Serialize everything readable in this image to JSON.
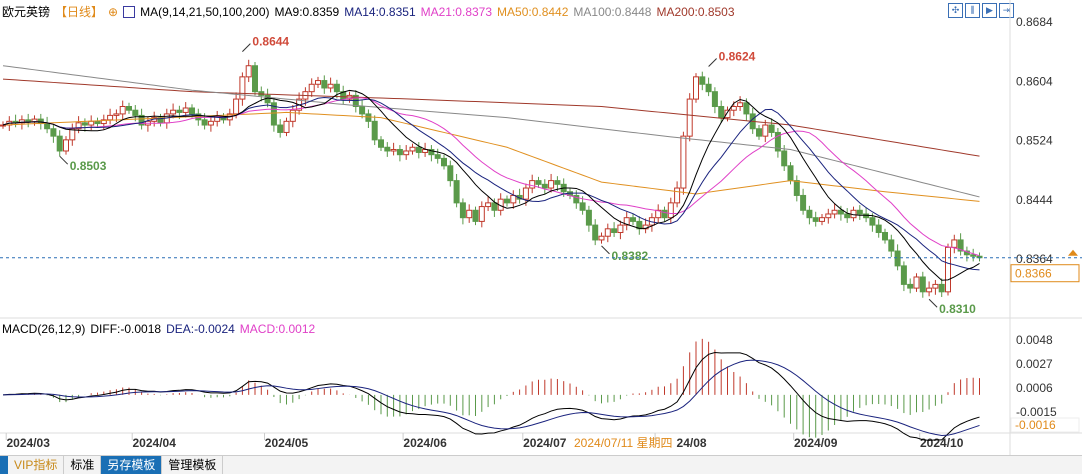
{
  "header": {
    "symbol": "欧元英镑",
    "period": "【日线】",
    "add_icon": "plus-circle-icon",
    "ma_label": "MA(9,14,21,50,100,200)",
    "ma9": "MA9:0.8359",
    "ma14": "MA14:0.8351",
    "ma21": "MA21:0.8373",
    "ma50": "MA50:0.8442",
    "ma100": "MA100:0.8448",
    "ma200": "MA200:0.8503"
  },
  "macd_header": {
    "label": "MACD(26,12,9)",
    "diff": "DIFF:-0.0018",
    "dea": "DEA:-0.0024",
    "macd": "MACD:0.0012"
  },
  "toolbar_icons": [
    "move-icon",
    "zoom-range-icon",
    "play-icon",
    "exit-icon"
  ],
  "colors": {
    "up": "#c0392b",
    "down": "#5a9a4a",
    "ma9": "#000000",
    "ma14": "#1a237e",
    "ma21": "#e040c8",
    "ma50": "#e09020",
    "ma100": "#888888",
    "ma200": "#a0392b",
    "price_line": "#2a6fb5",
    "price_tag": "#e08a1a"
  },
  "chart_data": {
    "type": "candlestick",
    "price_axis_ticks": [
      "0.8684",
      "0.8604",
      "0.8524",
      "0.8444",
      "0.8364"
    ],
    "macd_axis_ticks": [
      "0.0048",
      "0.0027",
      "0.0006",
      "-0.0015"
    ],
    "x_ticks": [
      {
        "label": "2024/03",
        "index": 4
      },
      {
        "label": "2024/04",
        "index": 24
      },
      {
        "label": "2024/05",
        "index": 45
      },
      {
        "label": "2024/06",
        "index": 67
      },
      {
        "label": "2024/07",
        "index": 86
      },
      {
        "label": "24/08",
        "index": 107
      },
      {
        "label": "2024/09",
        "index": 129
      },
      {
        "label": "2024/10",
        "index": 149
      }
    ],
    "crosshair_date": "2024/07/11 星期四",
    "current_price": "0.8366",
    "current_macd": "-0.0016",
    "close": [
      0.8545,
      0.855,
      0.8548,
      0.8552,
      0.8549,
      0.8553,
      0.8547,
      0.854,
      0.853,
      0.851,
      0.8525,
      0.854,
      0.8548,
      0.8545,
      0.855,
      0.8547,
      0.8552,
      0.8558,
      0.856,
      0.857,
      0.8565,
      0.8558,
      0.8545,
      0.855,
      0.8555,
      0.8548,
      0.856,
      0.8565,
      0.8562,
      0.8568,
      0.856,
      0.8552,
      0.8545,
      0.855,
      0.8556,
      0.8552,
      0.856,
      0.858,
      0.861,
      0.8625,
      0.859,
      0.8585,
      0.8575,
      0.8545,
      0.8535,
      0.855,
      0.8565,
      0.858,
      0.859,
      0.86,
      0.8605,
      0.8595,
      0.86,
      0.859,
      0.858,
      0.8585,
      0.857,
      0.856,
      0.855,
      0.8525,
      0.8515,
      0.851,
      0.8512,
      0.8505,
      0.851,
      0.8515,
      0.8508,
      0.8512,
      0.8505,
      0.85,
      0.849,
      0.847,
      0.844,
      0.842,
      0.843,
      0.8415,
      0.8435,
      0.844,
      0.843,
      0.8445,
      0.844,
      0.845,
      0.8445,
      0.846,
      0.847,
      0.8465,
      0.846,
      0.847,
      0.8465,
      0.8455,
      0.845,
      0.844,
      0.843,
      0.841,
      0.839,
      0.8395,
      0.8405,
      0.84,
      0.841,
      0.842,
      0.8415,
      0.8405,
      0.841,
      0.842,
      0.843,
      0.842,
      0.844,
      0.846,
      0.853,
      0.858,
      0.861,
      0.86,
      0.859,
      0.857,
      0.8555,
      0.8565,
      0.857,
      0.8575,
      0.856,
      0.854,
      0.853,
      0.8545,
      0.8535,
      0.851,
      0.849,
      0.847,
      0.845,
      0.843,
      0.842,
      0.8415,
      0.842,
      0.8425,
      0.843,
      0.8425,
      0.842,
      0.843,
      0.8425,
      0.842,
      0.841,
      0.84,
      0.839,
      0.8375,
      0.8355,
      0.833,
      0.8325,
      0.834,
      0.832,
      0.8325,
      0.833,
      0.832,
      0.838,
      0.839,
      0.8375,
      0.837,
      0.8368,
      0.8366
    ],
    "ma50": [
      [
        0,
        0.8545
      ],
      [
        45,
        0.8562
      ],
      [
        60,
        0.8555
      ],
      [
        80,
        0.8515
      ],
      [
        95,
        0.8468
      ],
      [
        110,
        0.8452
      ],
      [
        125,
        0.847
      ],
      [
        140,
        0.8455
      ],
      [
        155,
        0.8442
      ]
    ],
    "ma100": [
      [
        0,
        0.8625
      ],
      [
        30,
        0.8592
      ],
      [
        55,
        0.8572
      ],
      [
        80,
        0.8555
      ],
      [
        105,
        0.853
      ],
      [
        125,
        0.8512
      ],
      [
        140,
        0.848
      ],
      [
        155,
        0.8448
      ]
    ],
    "ma200": [
      [
        0,
        0.8607
      ],
      [
        30,
        0.859
      ],
      [
        65,
        0.858
      ],
      [
        95,
        0.857
      ],
      [
        125,
        0.8545
      ],
      [
        155,
        0.8503
      ]
    ],
    "annotations": [
      {
        "text": "0.8644",
        "index": 38,
        "price": 0.8644,
        "kind": "high"
      },
      {
        "text": "0.8503",
        "index": 9,
        "price": 0.8503,
        "kind": "low"
      },
      {
        "text": "0.8624",
        "index": 112,
        "price": 0.8624,
        "kind": "high"
      },
      {
        "text": "0.8382",
        "index": 95,
        "price": 0.8382,
        "kind": "low"
      },
      {
        "text": "0.8310",
        "index": 147,
        "price": 0.831,
        "kind": "low"
      }
    ]
  },
  "tabs": [
    "VIP指标",
    "标准",
    "另存模板",
    "管理模板"
  ]
}
